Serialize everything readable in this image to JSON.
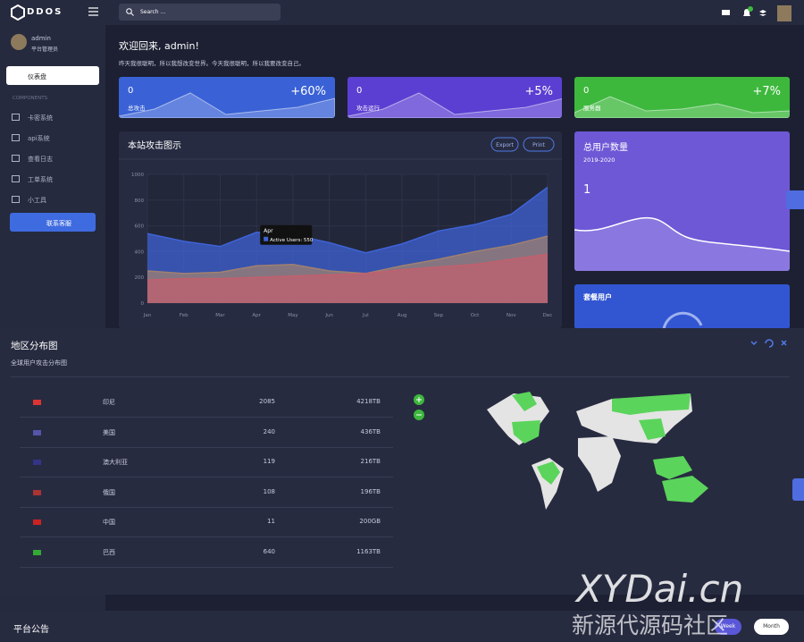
{
  "brand": "DDOS",
  "search": "Search ...",
  "user": {
    "name": "admin",
    "role": "平台管理员"
  },
  "nav": {
    "active": "仪表盘",
    "section": "COMPONENTS",
    "items": [
      "卡密系统",
      "api系统",
      "查看日志",
      "工单系统",
      "小工具"
    ],
    "contact": "联系客服"
  },
  "welcome": {
    "title": "欢迎回来, admin!",
    "text": "昨天我很聪明，所以我想改变世界。今天我很聪明，所以我要改变自己。"
  },
  "stats": [
    {
      "value": "0",
      "change": "+60%",
      "label": "总攻击",
      "color": "#3a62d6"
    },
    {
      "value": "0",
      "change": "+5%",
      "label": "攻击运行",
      "color": "#5b3fd2"
    },
    {
      "value": "0",
      "change": "+7%",
      "label": "服务器",
      "color": "#3db83d"
    }
  ],
  "attack_chart": {
    "type": "area",
    "title": "本站攻击图示",
    "buttons": [
      "Export",
      "Print"
    ],
    "categories": [
      "Jan",
      "Feb",
      "Mar",
      "Apr",
      "May",
      "Jun",
      "Jul",
      "Aug",
      "Sep",
      "Oct",
      "Nov",
      "Dec"
    ],
    "ylim": [
      0,
      1000
    ],
    "yticks": [
      0,
      200,
      400,
      600,
      800,
      1000
    ],
    "series": [
      {
        "color": "#3f63d6",
        "values": [
          540,
          480,
          440,
          550,
          530,
          470,
          390,
          460,
          560,
          610,
          690,
          900
        ]
      },
      {
        "color": "#a08070",
        "values": [
          250,
          230,
          240,
          290,
          300,
          250,
          230,
          290,
          340,
          400,
          450,
          520
        ]
      },
      {
        "color": "#c2606e",
        "values": [
          180,
          190,
          190,
          200,
          210,
          220,
          230,
          260,
          280,
          300,
          340,
          380
        ]
      }
    ],
    "tooltip": "Active Users: 550"
  },
  "users_card": {
    "title": "总用户数量",
    "period": "2019-2020",
    "value": "1"
  },
  "plan_card": {
    "title": "套餐用户"
  },
  "region": {
    "title": "地区分布图",
    "subtitle": "全球用户攻击分布图",
    "rows": [
      [
        "印尼",
        "2085",
        "4218TB"
      ],
      [
        "美国",
        "240",
        "436TB"
      ],
      [
        "澳大利亚",
        "119",
        "216TB"
      ],
      [
        "俄国",
        "108",
        "196TB"
      ],
      [
        "中国",
        "11",
        "200GB"
      ],
      [
        "巴西",
        "640",
        "1163TB"
      ]
    ]
  },
  "notice": {
    "title": "平台公告",
    "buttons": [
      "Week",
      "Month"
    ]
  },
  "watermark": {
    "domain": "XYDai.cn",
    "name": "新源代源码社区"
  }
}
